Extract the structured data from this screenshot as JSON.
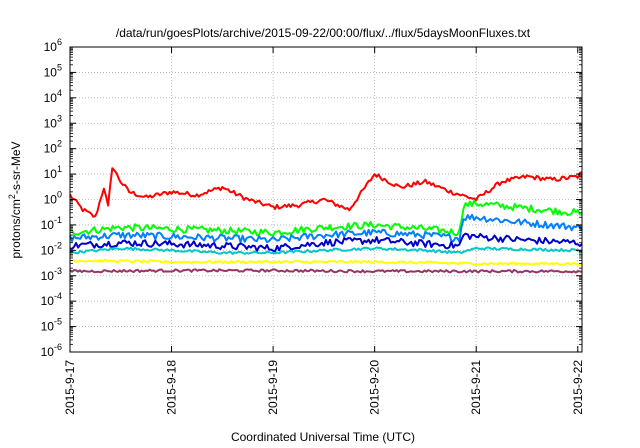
{
  "chart_data": {
    "type": "line",
    "title": "/data/run/goesPlots/archive/2015-09-22/00:00/flux/../flux/5daysMoonFluxes.txt",
    "xlabel": "Coordinated Universal Time (UTC)",
    "ylabel": "protons/cm²-s-sr-MeV",
    "ylabel_parts": {
      "a": "protons/cm",
      "sup": "2",
      "b": "-s-sr-MeV"
    },
    "y_scale": "log",
    "ylim": [
      1e-06,
      1000000.0
    ],
    "y_ticks": [
      {
        "value": 1000000.0,
        "base": "10",
        "exp": "6"
      },
      {
        "value": 100000.0,
        "base": "10",
        "exp": "5"
      },
      {
        "value": 10000.0,
        "base": "10",
        "exp": "4"
      },
      {
        "value": 1000.0,
        "base": "10",
        "exp": "3"
      },
      {
        "value": 100.0,
        "base": "10",
        "exp": "2"
      },
      {
        "value": 10.0,
        "base": "10",
        "exp": "1"
      },
      {
        "value": 1.0,
        "base": "10",
        "exp": "0"
      },
      {
        "value": 0.1,
        "base": "10",
        "exp": "-1"
      },
      {
        "value": 0.01,
        "base": "10",
        "exp": "-2"
      },
      {
        "value": 0.001,
        "base": "10",
        "exp": "-3"
      },
      {
        "value": 0.0001,
        "base": "10",
        "exp": "-4"
      },
      {
        "value": 1e-05,
        "base": "10",
        "exp": "-5"
      },
      {
        "value": 1e-06,
        "base": "10",
        "exp": "-6"
      }
    ],
    "x_ticks": [
      "2015-9-17",
      "2015-9-18",
      "2015-9-19",
      "2015-9-20",
      "2015-9-21",
      "2015-9-22"
    ],
    "xlim": [
      "2015-09-17T00:00",
      "2015-09-22T01:00"
    ],
    "grid": true,
    "legend": "none",
    "series": [
      {
        "color": "#ff0000",
        "x": [
          "2015-09-17T00:00",
          "2015-09-17T03:00",
          "2015-09-17T06:00",
          "2015-09-17T08:00",
          "2015-09-17T09:00",
          "2015-09-17T10:00",
          "2015-09-17T12:00",
          "2015-09-17T14:00",
          "2015-09-17T18:00",
          "2015-09-18T00:00",
          "2015-09-18T06:00",
          "2015-09-18T12:00",
          "2015-09-18T18:00",
          "2015-09-19T00:00",
          "2015-09-19T06:00",
          "2015-09-19T12:00",
          "2015-09-19T18:00",
          "2015-09-20T00:00",
          "2015-09-20T06:00",
          "2015-09-20T12:00",
          "2015-09-20T18:00",
          "2015-09-21T00:00",
          "2015-09-21T06:00",
          "2015-09-21T12:00",
          "2015-09-21T18:00",
          "2015-09-22T00:00",
          "2015-09-22T01:00"
        ],
        "y": [
          1.5,
          0.4,
          0.2,
          3.0,
          0.5,
          20,
          5.0,
          2.0,
          1.2,
          2.0,
          1.5,
          3.0,
          1.0,
          0.5,
          0.6,
          1.0,
          0.4,
          10,
          3.0,
          5.0,
          2.0,
          1.0,
          5.0,
          8.0,
          6.0,
          8.0,
          12
        ]
      },
      {
        "color": "#00ff00",
        "x": [
          "2015-09-17T00:00",
          "2015-09-17T12:00",
          "2015-09-18T00:00",
          "2015-09-18T12:00",
          "2015-09-19T00:00",
          "2015-09-19T12:00",
          "2015-09-20T00:00",
          "2015-09-20T12:00",
          "2015-09-20T20:00",
          "2015-09-20T21:00",
          "2015-09-21T00:00",
          "2015-09-21T12:00",
          "2015-09-22T00:00",
          "2015-09-22T01:00"
        ],
        "y": [
          0.05,
          0.08,
          0.07,
          0.06,
          0.05,
          0.08,
          0.1,
          0.07,
          0.05,
          0.6,
          0.7,
          0.45,
          0.3,
          0.25
        ]
      },
      {
        "color": "#0080ff",
        "x": [
          "2015-09-17T00:00",
          "2015-09-17T12:00",
          "2015-09-18T00:00",
          "2015-09-18T12:00",
          "2015-09-19T00:00",
          "2015-09-19T12:00",
          "2015-09-20T00:00",
          "2015-09-20T12:00",
          "2015-09-20T20:00",
          "2015-09-20T21:00",
          "2015-09-21T00:00",
          "2015-09-21T12:00",
          "2015-09-22T00:00",
          "2015-09-22T01:00"
        ],
        "y": [
          0.03,
          0.04,
          0.035,
          0.03,
          0.025,
          0.04,
          0.05,
          0.04,
          0.03,
          0.2,
          0.2,
          0.12,
          0.08,
          0.06
        ]
      },
      {
        "color": "#0000cc",
        "x": [
          "2015-09-17T00:00",
          "2015-09-17T12:00",
          "2015-09-18T00:00",
          "2015-09-18T12:00",
          "2015-09-19T00:00",
          "2015-09-19T12:00",
          "2015-09-20T00:00",
          "2015-09-20T12:00",
          "2015-09-20T20:00",
          "2015-09-20T21:00",
          "2015-09-21T00:00",
          "2015-09-21T12:00",
          "2015-09-22T00:00",
          "2015-09-22T01:00"
        ],
        "y": [
          0.015,
          0.02,
          0.018,
          0.015,
          0.012,
          0.02,
          0.025,
          0.018,
          0.015,
          0.04,
          0.035,
          0.025,
          0.02,
          0.018
        ]
      },
      {
        "color": "#00c8c8",
        "x": [
          "2015-09-17T00:00",
          "2015-09-17T12:00",
          "2015-09-18T00:00",
          "2015-09-18T12:00",
          "2015-09-19T00:00",
          "2015-09-19T12:00",
          "2015-09-20T00:00",
          "2015-09-20T12:00",
          "2015-09-20T20:00",
          "2015-09-21T00:00",
          "2015-09-21T12:00",
          "2015-09-22T00:00",
          "2015-09-22T01:00"
        ],
        "y": [
          0.008,
          0.012,
          0.01,
          0.008,
          0.008,
          0.01,
          0.012,
          0.01,
          0.008,
          0.012,
          0.011,
          0.01,
          0.01
        ]
      },
      {
        "color": "#ffff00",
        "x": [
          "2015-09-17T00:00",
          "2015-09-18T00:00",
          "2015-09-19T00:00",
          "2015-09-20T00:00",
          "2015-09-21T00:00",
          "2015-09-22T00:00",
          "2015-09-22T01:00"
        ],
        "y": [
          0.004,
          0.0035,
          0.0035,
          0.0035,
          0.003,
          0.003,
          0.003
        ]
      },
      {
        "color": "#993366",
        "x": [
          "2015-09-17T00:00",
          "2015-09-18T00:00",
          "2015-09-19T00:00",
          "2015-09-20T00:00",
          "2015-09-21T00:00",
          "2015-09-22T00:00",
          "2015-09-22T01:00"
        ],
        "y": [
          0.0015,
          0.0016,
          0.0016,
          0.0015,
          0.0015,
          0.0015,
          0.0014
        ]
      }
    ]
  }
}
